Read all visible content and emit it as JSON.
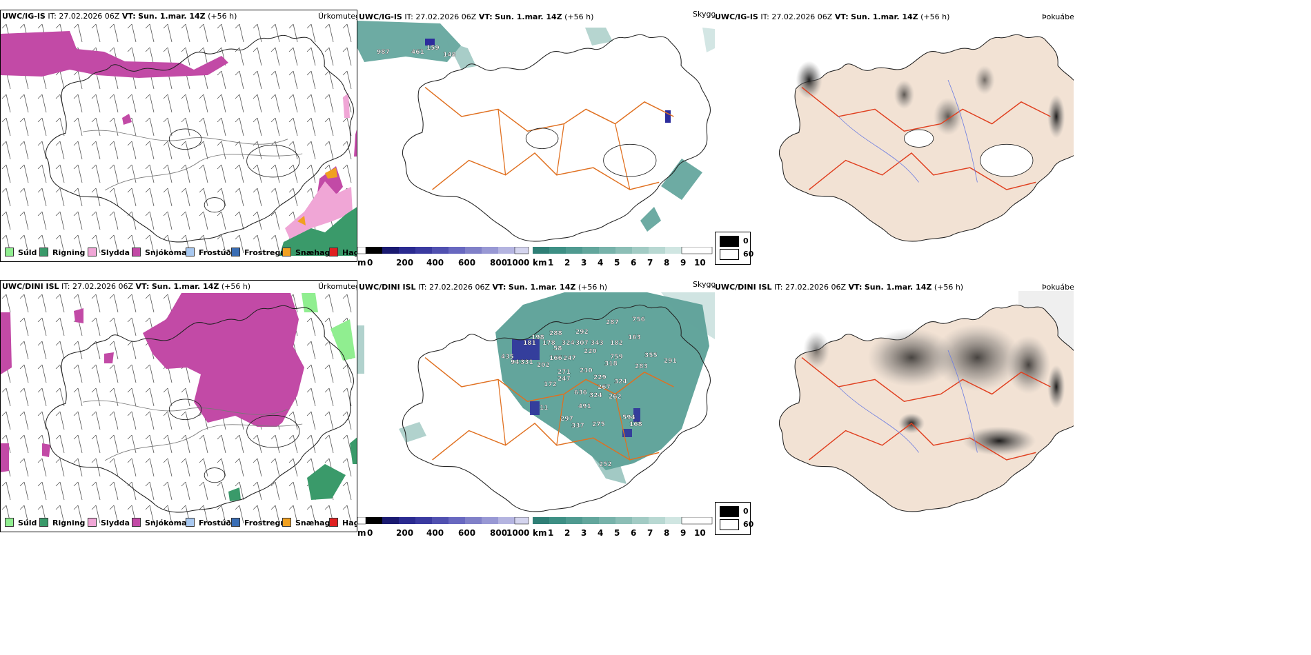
{
  "colors": {
    "precip": {
      "suld": "#90ee90",
      "rigning": "#3a9a6a",
      "slydda": "#f0a6d6",
      "snjokoma": "#c24aa6",
      "frostudi": "#a8c8f0",
      "frostregn": "#3a6eb5",
      "snaehagl": "#f0a020",
      "haglel": "#e02020"
    },
    "cloud_teal": "#3d8f84",
    "cloud_blue": "#2c2c9c",
    "land_fill": "#f2e2d4",
    "roads": "#e07020"
  },
  "rows": [
    {
      "precip": {
        "model": "UWC/IG-IS",
        "it_label": "IT:",
        "it": "27.02.2026 06Z",
        "vt_label": "VT:",
        "vt": "Sun. 1.mar. 14Z",
        "lead": "(+56 h)",
        "right": "Úrkomutegund"
      },
      "cloud": {
        "model": "UWC/IG-IS",
        "it_label": "IT:",
        "it": "27.02.2026 06Z",
        "vt_label": "VT:",
        "vt": "Sun. 1.mar. 14Z",
        "lead": "(+56 h)",
        "right": "Skyggni",
        "labels": [
          "987",
          "461",
          "159",
          "148"
        ]
      },
      "fog": {
        "model": "UWC/IG-IS",
        "it_label": "IT:",
        "it": "27.02.2026 06Z",
        "vt_label": "VT:",
        "vt": "Sun. 1.mar. 14Z",
        "lead": "(+56 h)",
        "right": "Þokuábendi"
      }
    },
    {
      "precip": {
        "model": "UWC/DINI ISL",
        "it_label": "IT:",
        "it": "27.02.2026 06Z",
        "vt_label": "VT:",
        "vt": "Sun. 1.mar. 14Z",
        "lead": "(+56 h)",
        "right": "Úrkomutegund"
      },
      "cloud": {
        "model": "UWC/DINI ISL",
        "it_label": "IT:",
        "it": "27.02.2026 06Z",
        "vt_label": "VT:",
        "vt": "Sun. 1.mar. 14Z",
        "lead": "(+56 h)",
        "right": "Skyggni",
        "labels": [
          "287",
          "756",
          "292",
          "198",
          "288",
          "163",
          "181",
          "178",
          "324",
          "307",
          "343",
          "182",
          "58",
          "220",
          "435",
          "759",
          "355",
          "94",
          "331",
          "247",
          "318",
          "291",
          "202",
          "166",
          "283",
          "271",
          "210",
          "247",
          "229",
          "172",
          "324",
          "636",
          "324",
          "267",
          "262",
          "491",
          "11",
          "594",
          "297",
          "337",
          "275",
          "168",
          "252"
        ]
      },
      "fog": {
        "model": "UWC/DINI ISL",
        "it_label": "IT:",
        "it": "27.02.2026 06Z",
        "vt_label": "VT:",
        "vt": "Sun. 1.mar. 14Z",
        "lead": "(+56 h)",
        "right": "Þokuábendi"
      }
    }
  ],
  "precip_legend": [
    {
      "label": "Súld",
      "key": "suld"
    },
    {
      "label": "Rigning",
      "key": "rigning"
    },
    {
      "label": "Slydda",
      "key": "slydda"
    },
    {
      "label": "Snjókoma",
      "key": "snjokoma"
    },
    {
      "label": "Frostúði",
      "key": "frostudi"
    },
    {
      "label": "Frostregn",
      "key": "frostregn"
    },
    {
      "label": "Snæhagl",
      "key": "snaehagl"
    },
    {
      "label": "Haglél",
      "key": "haglel"
    }
  ],
  "height_bar": {
    "unit": "m",
    "ticks": [
      "0",
      "200",
      "400",
      "600",
      "800",
      "1000"
    ]
  },
  "vis_bar": {
    "unit": "km",
    "ticks": [
      "1",
      "2",
      "3",
      "4",
      "5",
      "6",
      "7",
      "8",
      "9",
      "10"
    ]
  },
  "fog_legend": {
    "top": "0",
    "bottom": "60"
  }
}
